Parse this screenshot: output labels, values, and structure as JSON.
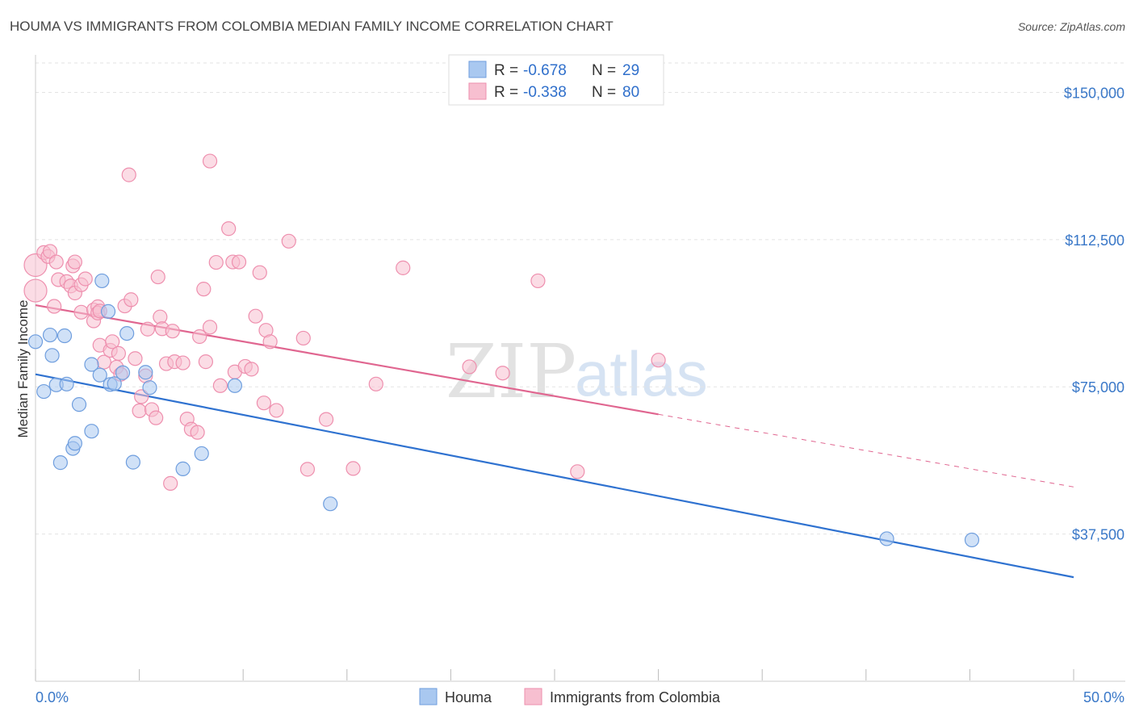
{
  "chart_data": {
    "type": "scatter",
    "title": "HOUMA VS IMMIGRANTS FROM COLOMBIA MEDIAN FAMILY INCOME CORRELATION CHART",
    "source": "Source: ZipAtlas.com",
    "xlabel": "",
    "ylabel": "Median Family Income",
    "xlim": [
      0,
      50
    ],
    "ylim": [
      0,
      157500
    ],
    "x_tick_labels": [
      "0.0%",
      "50.0%"
    ],
    "y_ticks": [
      37500,
      75000,
      112500,
      150000
    ],
    "y_tick_labels": [
      "$37,500",
      "$75,000",
      "$112,500",
      "$150,000"
    ],
    "legend_placement": "top-center",
    "legend": [
      {
        "r_label": "R = ",
        "r_value": "-0.678",
        "n_label": "N = ",
        "n_value": "29"
      },
      {
        "r_label": "R = ",
        "r_value": "-0.338",
        "n_label": "N = ",
        "n_value": "80"
      }
    ],
    "series": [
      {
        "name": "Houma",
        "color": "#a9c8f0",
        "stroke": "#6f9ede",
        "line_color": "#2f72d0",
        "trend": {
          "x0": 0,
          "y0": 78200,
          "x1": 50,
          "y1": 26500
        },
        "points": [
          [
            0.0,
            86500
          ],
          [
            0.4,
            73800
          ],
          [
            0.7,
            88200
          ],
          [
            0.8,
            83000
          ],
          [
            1.0,
            75500
          ],
          [
            1.2,
            55700
          ],
          [
            1.4,
            88000
          ],
          [
            1.5,
            75700
          ],
          [
            1.8,
            59300
          ],
          [
            1.9,
            60600
          ],
          [
            2.1,
            70500
          ],
          [
            2.7,
            63700
          ],
          [
            2.7,
            80700
          ],
          [
            3.1,
            78000
          ],
          [
            3.2,
            102000
          ],
          [
            3.5,
            94200
          ],
          [
            3.6,
            75600
          ],
          [
            3.8,
            75800
          ],
          [
            4.2,
            78600
          ],
          [
            4.4,
            88600
          ],
          [
            4.7,
            55800
          ],
          [
            5.3,
            78700
          ],
          [
            5.5,
            74800
          ],
          [
            7.1,
            54100
          ],
          [
            8.0,
            58000
          ],
          [
            9.6,
            75300
          ],
          [
            14.2,
            45200
          ],
          [
            41.0,
            36300
          ],
          [
            45.1,
            36000
          ]
        ]
      },
      {
        "name": "Immigrants from Colombia",
        "color": "#f7bfd0",
        "stroke": "#ee8fae",
        "line_color": "#e06690",
        "trend": {
          "x0": 0,
          "y0": 95800,
          "x1": 30,
          "y1": 68000
        },
        "trend_ext": {
          "x0": 30,
          "y0": 68000,
          "x1": 50,
          "y1": 49500
        },
        "points": [
          [
            0.0,
            99500
          ],
          [
            0.0,
            106000
          ],
          [
            0.4,
            109200
          ],
          [
            0.6,
            108200
          ],
          [
            0.7,
            109500
          ],
          [
            0.9,
            95500
          ],
          [
            1.0,
            106800
          ],
          [
            1.1,
            102300
          ],
          [
            1.5,
            101800
          ],
          [
            1.7,
            100700
          ],
          [
            1.8,
            105800
          ],
          [
            1.9,
            98900
          ],
          [
            1.9,
            106800
          ],
          [
            2.2,
            101000
          ],
          [
            2.4,
            102500
          ],
          [
            2.2,
            94000
          ],
          [
            2.8,
            91800
          ],
          [
            2.8,
            94600
          ],
          [
            3.0,
            95400
          ],
          [
            3.0,
            93800
          ],
          [
            3.1,
            85600
          ],
          [
            3.1,
            94300
          ],
          [
            3.3,
            81300
          ],
          [
            3.6,
            84300
          ],
          [
            3.7,
            86500
          ],
          [
            3.9,
            80000
          ],
          [
            4.0,
            83500
          ],
          [
            4.1,
            78200
          ],
          [
            4.3,
            95600
          ],
          [
            4.5,
            129000
          ],
          [
            4.6,
            97200
          ],
          [
            4.8,
            82200
          ],
          [
            5.0,
            68900
          ],
          [
            5.1,
            72500
          ],
          [
            5.3,
            77800
          ],
          [
            5.4,
            89700
          ],
          [
            5.6,
            69200
          ],
          [
            5.8,
            67100
          ],
          [
            5.9,
            103000
          ],
          [
            6.0,
            92800
          ],
          [
            6.1,
            89800
          ],
          [
            6.3,
            80900
          ],
          [
            6.5,
            50400
          ],
          [
            6.6,
            89200
          ],
          [
            6.7,
            81400
          ],
          [
            7.1,
            81100
          ],
          [
            7.3,
            66800
          ],
          [
            7.5,
            64200
          ],
          [
            7.8,
            63400
          ],
          [
            7.9,
            87800
          ],
          [
            8.1,
            99900
          ],
          [
            8.2,
            81400
          ],
          [
            8.4,
            132500
          ],
          [
            8.4,
            90200
          ],
          [
            8.7,
            106700
          ],
          [
            8.9,
            75300
          ],
          [
            9.3,
            115300
          ],
          [
            9.5,
            106800
          ],
          [
            9.8,
            106800
          ],
          [
            9.6,
            78800
          ],
          [
            10.1,
            80200
          ],
          [
            10.4,
            79500
          ],
          [
            10.6,
            93000
          ],
          [
            10.8,
            104100
          ],
          [
            11.0,
            70900
          ],
          [
            11.1,
            89400
          ],
          [
            11.3,
            86500
          ],
          [
            11.6,
            69000
          ],
          [
            12.2,
            112100
          ],
          [
            12.9,
            87400
          ],
          [
            13.1,
            54000
          ],
          [
            14.0,
            66700
          ],
          [
            15.3,
            54200
          ],
          [
            16.4,
            75700
          ],
          [
            17.7,
            105300
          ],
          [
            20.9,
            80100
          ],
          [
            22.5,
            78500
          ],
          [
            24.2,
            102000
          ],
          [
            26.1,
            53400
          ],
          [
            30.0,
            81800
          ]
        ]
      }
    ]
  },
  "watermark": {
    "left": "ZIP",
    "right": "atlas"
  }
}
